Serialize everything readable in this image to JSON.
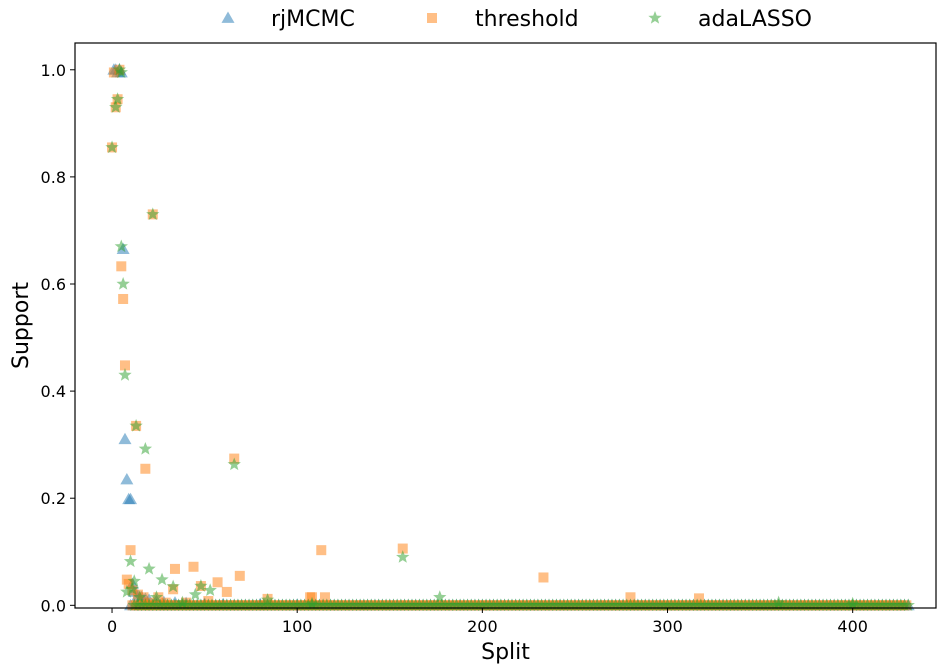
{
  "chart_data": {
    "type": "scatter",
    "xlabel": "Split",
    "ylabel": "Support",
    "xlim": [
      -20,
      445
    ],
    "ylim": [
      -0.005,
      1.05
    ],
    "xticks": [
      0,
      100,
      200,
      300,
      400
    ],
    "yticks": [
      0.0,
      0.2,
      0.4,
      0.6,
      0.8,
      1.0
    ],
    "xtick_labels": [
      "0",
      "100",
      "200",
      "300",
      "400"
    ],
    "ytick_labels": [
      "0.0",
      "0.2",
      "0.4",
      "0.6",
      "0.8",
      "1.0"
    ],
    "grid": false,
    "legend_position": "top-center, outside plot",
    "series": [
      {
        "name": "rjMCMC",
        "marker": "triangle",
        "color": "#1f77b4",
        "points": [
          {
            "x": 1,
            "y": 1.0
          },
          {
            "x": 2,
            "y": 1.0
          },
          {
            "x": 3,
            "y": 0.995
          },
          {
            "x": 4,
            "y": 1.0
          },
          {
            "x": 5,
            "y": 0.995
          },
          {
            "x": 6,
            "y": 0.665
          },
          {
            "x": 7,
            "y": 0.31
          },
          {
            "x": 8,
            "y": 0.235
          },
          {
            "x": 9,
            "y": 0.198
          },
          {
            "x": 10,
            "y": 0.198
          },
          {
            "x": 11,
            "y": 0.04
          },
          {
            "x": 12,
            "y": 0.025
          },
          {
            "x": 14,
            "y": 0.018
          },
          {
            "x": 16,
            "y": 0.015
          },
          {
            "x": 18,
            "y": 0.012
          },
          {
            "x": 20,
            "y": 0.01
          },
          {
            "x": 24,
            "y": 0.008
          },
          {
            "x": 28,
            "y": 0.006
          },
          {
            "x": 34,
            "y": 0.005
          },
          {
            "x": 40,
            "y": 0.004
          },
          {
            "x": 50,
            "y": 0.003
          },
          {
            "x": 60,
            "y": 0.002
          },
          {
            "x": 80,
            "y": 0.002
          },
          {
            "x": 100,
            "y": 0.001
          }
        ]
      },
      {
        "name": "threshold",
        "marker": "square",
        "color": "#ff7f0e",
        "points": [
          {
            "x": 0,
            "y": 0.855
          },
          {
            "x": 1,
            "y": 0.995
          },
          {
            "x": 2,
            "y": 0.93
          },
          {
            "x": 3,
            "y": 0.945
          },
          {
            "x": 4,
            "y": 1.0
          },
          {
            "x": 5,
            "y": 0.633
          },
          {
            "x": 6,
            "y": 0.572
          },
          {
            "x": 7,
            "y": 0.448
          },
          {
            "x": 8,
            "y": 0.048
          },
          {
            "x": 9,
            "y": 0.04
          },
          {
            "x": 10,
            "y": 0.103
          },
          {
            "x": 11,
            "y": 0.028
          },
          {
            "x": 13,
            "y": 0.335
          },
          {
            "x": 14,
            "y": 0.02
          },
          {
            "x": 17,
            "y": 0.015
          },
          {
            "x": 18,
            "y": 0.255
          },
          {
            "x": 20,
            "y": 0.005
          },
          {
            "x": 22,
            "y": 0.73
          },
          {
            "x": 25,
            "y": 0.015
          },
          {
            "x": 29,
            "y": 0.005
          },
          {
            "x": 33,
            "y": 0.03
          },
          {
            "x": 34,
            "y": 0.068
          },
          {
            "x": 40,
            "y": 0.005
          },
          {
            "x": 44,
            "y": 0.072
          },
          {
            "x": 48,
            "y": 0.036
          },
          {
            "x": 52,
            "y": 0.008
          },
          {
            "x": 57,
            "y": 0.043
          },
          {
            "x": 62,
            "y": 0.025
          },
          {
            "x": 66,
            "y": 0.274
          },
          {
            "x": 69,
            "y": 0.055
          },
          {
            "x": 84,
            "y": 0.012
          },
          {
            "x": 107,
            "y": 0.015
          },
          {
            "x": 108,
            "y": 0.015
          },
          {
            "x": 113,
            "y": 0.103
          },
          {
            "x": 115,
            "y": 0.015
          },
          {
            "x": 157,
            "y": 0.106
          },
          {
            "x": 233,
            "y": 0.052
          },
          {
            "x": 280,
            "y": 0.015
          },
          {
            "x": 317,
            "y": 0.013
          }
        ]
      },
      {
        "name": "adaLASSO",
        "marker": "star",
        "color": "#2ca02c",
        "points": [
          {
            "x": 0,
            "y": 0.855
          },
          {
            "x": 2,
            "y": 0.93
          },
          {
            "x": 3,
            "y": 0.945
          },
          {
            "x": 4,
            "y": 1.0
          },
          {
            "x": 5,
            "y": 0.995
          },
          {
            "x": 5,
            "y": 0.67
          },
          {
            "x": 6,
            "y": 0.6
          },
          {
            "x": 7,
            "y": 0.43
          },
          {
            "x": 8,
            "y": 0.025
          },
          {
            "x": 10,
            "y": 0.082
          },
          {
            "x": 11,
            "y": 0.03
          },
          {
            "x": 12,
            "y": 0.045
          },
          {
            "x": 13,
            "y": 0.335
          },
          {
            "x": 15,
            "y": 0.015
          },
          {
            "x": 18,
            "y": 0.292
          },
          {
            "x": 20,
            "y": 0.068
          },
          {
            "x": 22,
            "y": 0.73
          },
          {
            "x": 24,
            "y": 0.015
          },
          {
            "x": 27,
            "y": 0.048
          },
          {
            "x": 33,
            "y": 0.035
          },
          {
            "x": 38,
            "y": 0.005
          },
          {
            "x": 45,
            "y": 0.02
          },
          {
            "x": 48,
            "y": 0.036
          },
          {
            "x": 53,
            "y": 0.028
          },
          {
            "x": 66,
            "y": 0.263
          },
          {
            "x": 84,
            "y": 0.01
          },
          {
            "x": 108,
            "y": 0.003
          },
          {
            "x": 157,
            "y": 0.09
          },
          {
            "x": 177,
            "y": 0.015
          },
          {
            "x": 360,
            "y": 0.005
          },
          {
            "x": 400,
            "y": 0.003
          }
        ]
      }
    ],
    "baseline": {
      "y": 0.0,
      "x_from": 10,
      "x_to": 430
    }
  }
}
